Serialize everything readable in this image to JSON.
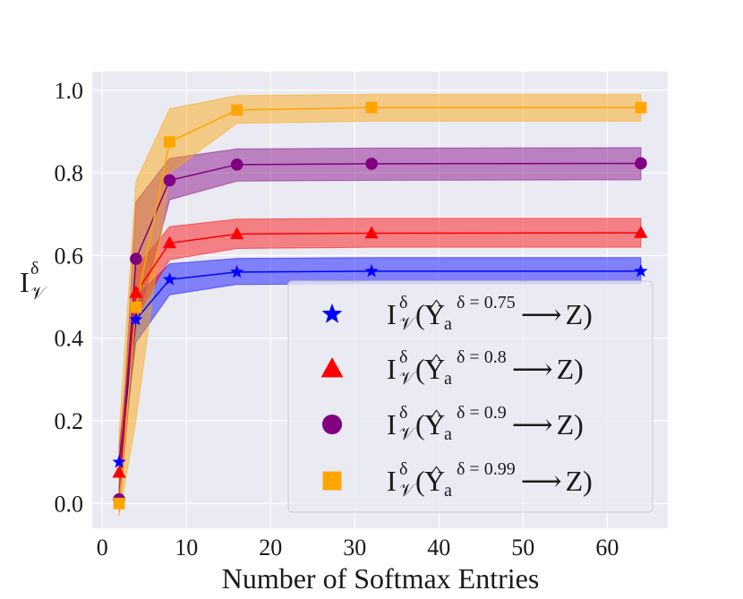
{
  "chart_data": {
    "type": "line",
    "title": "",
    "xlabel": "Number of Softmax Entries",
    "ylabel_main": "I",
    "ylabel_sup": "δ",
    "ylabel_sub": "𝒱",
    "xlim": [
      -1.2,
      67.2
    ],
    "ylim": [
      -0.06,
      1.045
    ],
    "xticks": [
      0,
      10,
      20,
      30,
      40,
      50,
      60
    ],
    "yticks": [
      0.0,
      0.2,
      0.4,
      0.6,
      0.8,
      1.0
    ],
    "xtick_labels": [
      "0",
      "10",
      "20",
      "30",
      "40",
      "50",
      "60"
    ],
    "ytick_labels": [
      "0.0",
      "0.2",
      "0.4",
      "0.6",
      "0.8",
      "1.0"
    ],
    "grid": true,
    "background": "#eaeaf2",
    "legend_position": "lower-right",
    "x": [
      2,
      4,
      8,
      16,
      32,
      64
    ],
    "series": [
      {
        "name": "δ = 0.75",
        "legend_main": "I",
        "legend_sup_delta": "δ",
        "legend_sub_v": "𝒱",
        "legend_open": "(",
        "legend_y": "Y",
        "legend_hat": "^",
        "legend_sub_a": "a",
        "legend_sup_eq": "δ = 0.75",
        "legend_arrow": "⟶",
        "legend_z": "Z)",
        "color": "#0000ff",
        "marker": "star",
        "values": [
          0.1,
          0.445,
          0.542,
          0.56,
          0.562,
          0.562
        ],
        "lower": [
          0.06,
          0.39,
          0.505,
          0.53,
          0.532,
          0.532
        ],
        "upper": [
          0.14,
          0.5,
          0.58,
          0.593,
          0.595,
          0.595
        ]
      },
      {
        "name": "δ = 0.8",
        "legend_main": "I",
        "legend_sup_delta": "δ",
        "legend_sub_v": "𝒱",
        "legend_open": "(",
        "legend_y": "Y",
        "legend_hat": "^",
        "legend_sub_a": "a",
        "legend_sup_eq": "δ = 0.8",
        "legend_arrow": "⟶",
        "legend_z": "Z)",
        "color": "#ff0000",
        "marker": "triangle",
        "values": [
          0.075,
          0.51,
          0.63,
          0.652,
          0.654,
          0.655
        ],
        "lower": [
          0.03,
          0.45,
          0.59,
          0.617,
          0.62,
          0.62
        ],
        "upper": [
          0.12,
          0.57,
          0.67,
          0.688,
          0.69,
          0.69
        ]
      },
      {
        "name": "δ = 0.9",
        "legend_main": "I",
        "legend_sup_delta": "δ",
        "legend_sub_v": "𝒱",
        "legend_open": "(",
        "legend_y": "Y",
        "legend_hat": "^",
        "legend_sub_a": "a",
        "legend_sup_eq": "δ = 0.9",
        "legend_arrow": "⟶",
        "legend_z": "Z)",
        "color": "#800080",
        "marker": "circle",
        "values": [
          0.01,
          0.592,
          0.782,
          0.82,
          0.822,
          0.823
        ],
        "lower": [
          -0.02,
          0.43,
          0.735,
          0.78,
          0.782,
          0.783
        ],
        "upper": [
          0.04,
          0.73,
          0.835,
          0.858,
          0.86,
          0.861
        ]
      },
      {
        "name": "δ = 0.99",
        "legend_main": "I",
        "legend_sup_delta": "δ",
        "legend_sub_v": "𝒱",
        "legend_open": "(",
        "legend_y": "Y",
        "legend_hat": "^",
        "legend_sub_a": "a",
        "legend_sup_eq": "δ = 0.99",
        "legend_arrow": "⟶",
        "legend_z": "Z)",
        "color": "#ffa500",
        "marker": "square",
        "values": [
          0.0,
          0.475,
          0.875,
          0.952,
          0.958,
          0.958
        ],
        "lower": [
          -0.03,
          0.2,
          0.8,
          0.92,
          0.925,
          0.925
        ],
        "upper": [
          0.17,
          0.78,
          0.955,
          0.987,
          0.99,
          0.99
        ]
      }
    ]
  }
}
